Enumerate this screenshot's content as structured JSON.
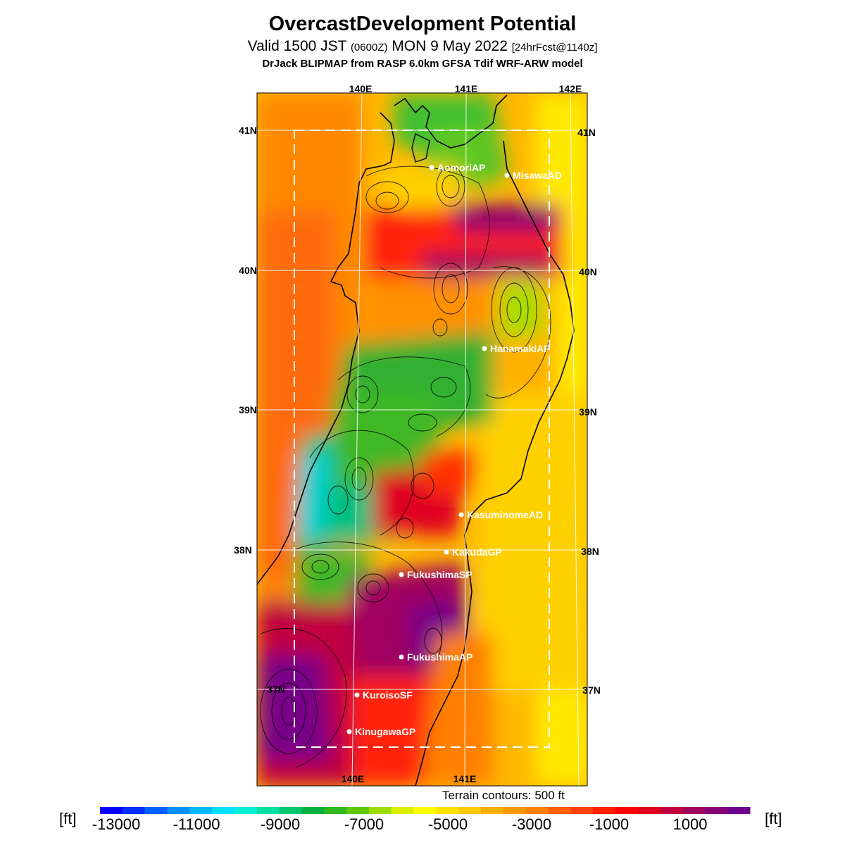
{
  "header": {
    "title": "OvercastDevelopment Potential",
    "valid_pre": "Valid 1500 JST ",
    "valid_utc": "(0600Z)",
    "valid_mid": " MON 9 May 2022 ",
    "valid_fcst": "[24hrFcst@1140z]",
    "credit": "DrJack BLIPMAP from RASP 6.0km GFSA Tdif WRF-ARW model"
  },
  "map": {
    "lon_labels_top": [
      "140E",
      "141E",
      "142E"
    ],
    "lon_labels_bottom": [
      "140E",
      "141E"
    ],
    "lat_labels_left": [
      "41N",
      "40N",
      "39N",
      "38N",
      "37N"
    ],
    "lat_labels_right": [
      "41N",
      "40N",
      "39N",
      "38N",
      "37N"
    ],
    "sites": [
      "AomoriAP",
      "MisawaAD",
      "HanamakiAP",
      "KasuminomeAD",
      "KakudaGP",
      "FukushimaSP",
      "FukushimaAP",
      "KuroisoSF",
      "KinugawaGP"
    ]
  },
  "footer": {
    "terrain_note": "Terrain contours: 500 ft",
    "unit": "[ft]"
  },
  "colorbar": {
    "tick_labels": [
      "-13000",
      "-11000",
      "-9000",
      "-7000",
      "-5000",
      "-3000",
      "-1000",
      "1000"
    ],
    "colors": [
      "#0000ff",
      "#0030ff",
      "#0060ff",
      "#0090ff",
      "#00b8ff",
      "#00e0ff",
      "#00f0d8",
      "#00e0a0",
      "#00c870",
      "#00b040",
      "#30b820",
      "#60c800",
      "#a0dc00",
      "#d8f000",
      "#ffff00",
      "#ffe000",
      "#ffc800",
      "#ffb000",
      "#ff9800",
      "#ff8000",
      "#ff6000",
      "#ff4000",
      "#ff2000",
      "#ff0000",
      "#e00020",
      "#c00040",
      "#a00060",
      "#880078",
      "#700090"
    ]
  }
}
